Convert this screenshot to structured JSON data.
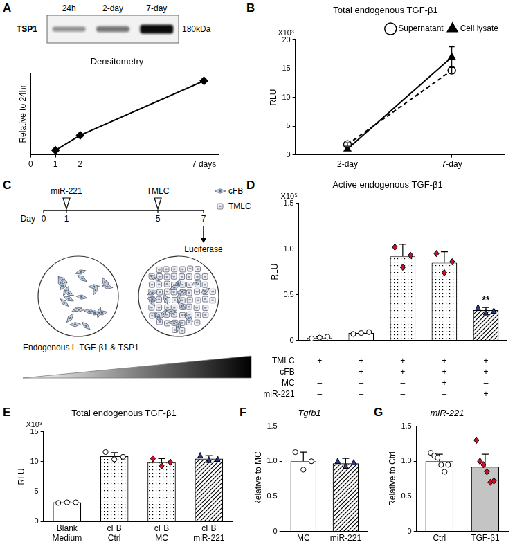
{
  "panel_labels": [
    "A",
    "B",
    "C",
    "D",
    "E",
    "F",
    "G"
  ],
  "blot": {
    "lanes": [
      "24h",
      "2-day",
      "7-day"
    ],
    "band": "TSP1",
    "size": "180kDa"
  },
  "diagram": {
    "axis_label": "Day",
    "ticks": [
      0,
      1,
      5,
      7
    ],
    "events": [
      {
        "day": 1,
        "label": "miR-221"
      },
      {
        "day": 5,
        "label": "TMLC"
      }
    ],
    "readout": {
      "day": 7,
      "label": "Luciferase"
    },
    "legend": [
      "cFB",
      "TMLC"
    ],
    "gradient_label": "Endogenous L-TGF-β1 & TSP1"
  },
  "chart_data": [
    {
      "type": "line",
      "title": "Densitometry",
      "x": [
        1,
        2,
        7
      ],
      "values": [
        1,
        4.3,
        16.3
      ],
      "xlim": [
        0,
        7.6
      ],
      "xticks": [
        0,
        1,
        2,
        {
          "value": 7,
          "label": "7 days"
        }
      ],
      "ylim": [
        0,
        18
      ],
      "ylabel": "Relative to 24hr",
      "tick_labels": "x",
      "grid": false,
      "color": "#000000",
      "marker": "diamond"
    },
    {
      "type": "line",
      "title": "Total endogenous TGF-β1",
      "categories": [
        "2-day",
        "7-day"
      ],
      "series": [
        {
          "name": "Supernatant",
          "color": "#000000",
          "values": [
            1.8,
            14.7
          ],
          "errors": [
            0.3,
            0.5
          ],
          "marker": "circle_open",
          "line_style": "dashed"
        },
        {
          "name": "Cell lysate",
          "color": "#000000",
          "values": [
            1.0,
            17.0
          ],
          "errors": [
            0.2,
            1.8
          ],
          "marker": "triangle",
          "line_style": "solid"
        }
      ],
      "ylim": [
        0,
        20
      ],
      "yticks": [
        0,
        5,
        10,
        15,
        20
      ],
      "ylabel": "RLU",
      "annotations": [
        {
          "text": "X10³"
        }
      ],
      "legend": "top-right",
      "grid": false
    },
    {
      "type": "bar",
      "title": "Active endogenous TGF-β1",
      "categories": [
        null,
        null,
        null,
        null,
        null
      ],
      "values": [
        0.03,
        0.08,
        0.92,
        0.85,
        0.33
      ],
      "errors": [
        0.01,
        0.01,
        0.13,
        0.12,
        0.03
      ],
      "points": [
        [
          0.02,
          0.03,
          0.04
        ],
        [
          0.07,
          0.08,
          0.09
        ],
        [
          1.02,
          0.8,
          0.93
        ],
        [
          0.95,
          0.74,
          0.86
        ],
        [
          0.36,
          0.3,
          0.32
        ]
      ],
      "colors": [
        "#ffffff",
        "#ffffff",
        "#ffffff",
        "#ffffff",
        "#ffffff"
      ],
      "ylim": [
        0,
        1.5
      ],
      "yticks": [
        0,
        0.5,
        {
          "value": 1,
          "label": "1.0"
        },
        1.5
      ],
      "ylabel": "RLU",
      "annotations": [
        {
          "text": "X10⁵"
        },
        {
          "text": "**",
          "index": 4
        }
      ],
      "conditions": [
        {
          "name": "TMLC",
          "values": [
            "+",
            "+",
            "+",
            "+",
            "+"
          ]
        },
        {
          "name": "cFB",
          "values": [
            "–",
            "+",
            "+",
            "+",
            "+"
          ]
        },
        {
          "name": "MC",
          "values": [
            "–",
            "–",
            "–",
            "+",
            "–"
          ]
        },
        {
          "name": "miR-221",
          "values": [
            "–",
            "–",
            "–",
            "–",
            "+"
          ]
        }
      ],
      "grid": false
    },
    {
      "type": "bar",
      "title": "Total endogenous TGF-β1",
      "categories": [
        "Blank Medium",
        "cFB Ctrl",
        "cFB MC",
        "cFB miR-221"
      ],
      "values": [
        3.2,
        10.9,
        9.9,
        10.5
      ],
      "errors": [
        0.2,
        0.6,
        0.6,
        0.5
      ],
      "points": [
        [
          3.1,
          3.2,
          3.2
        ],
        [
          11.6,
          10.4,
          10.8
        ],
        [
          10.5,
          9.3,
          9.9
        ],
        [
          11.0,
          10.2,
          10.4
        ]
      ],
      "colors": [
        "#ffffff",
        "#ffffff",
        "#ffffff",
        "#ffffff"
      ],
      "ylim": [
        0,
        15
      ],
      "yticks": [
        0,
        5,
        10,
        15
      ],
      "ylabel": "RLU",
      "annotations": [
        {
          "text": "X10³"
        }
      ],
      "grid": false
    },
    {
      "type": "bar",
      "title": "Tgfb1",
      "categories": [
        "MC",
        "miR-221"
      ],
      "values": [
        1.0,
        0.97
      ],
      "errors": [
        0.13,
        0.07
      ],
      "points": [
        [
          1.13,
          0.88,
          1.0
        ],
        [
          1.0,
          0.93,
          0.98
        ]
      ],
      "colors": [
        "#ffffff",
        "#ffffff"
      ],
      "ylim": [
        0,
        1.5
      ],
      "yticks": [
        0,
        0.5,
        {
          "value": 1,
          "label": "1.0"
        },
        1.5
      ],
      "ylabel": "Relative to MC",
      "grid": false
    },
    {
      "type": "bar",
      "title": "miR-221",
      "categories": [
        "Ctrl",
        "TGF-β1"
      ],
      "values": [
        1.0,
        0.92
      ],
      "errors": [
        0.1,
        0.18
      ],
      "points": [
        [
          1.12,
          1.08,
          1.05,
          0.95,
          0.85,
          0.95
        ],
        [
          1.3,
          1.0,
          0.95,
          0.85,
          0.7,
          0.72
        ]
      ],
      "colors": [
        "#ffffff",
        "#c4c4c4"
      ],
      "ylim": [
        0,
        1.5
      ],
      "yticks": [
        0,
        0.5,
        {
          "value": 1,
          "label": "1.0"
        },
        1.5
      ],
      "ylabel": "Relative to Ctrl",
      "grid": false
    }
  ]
}
